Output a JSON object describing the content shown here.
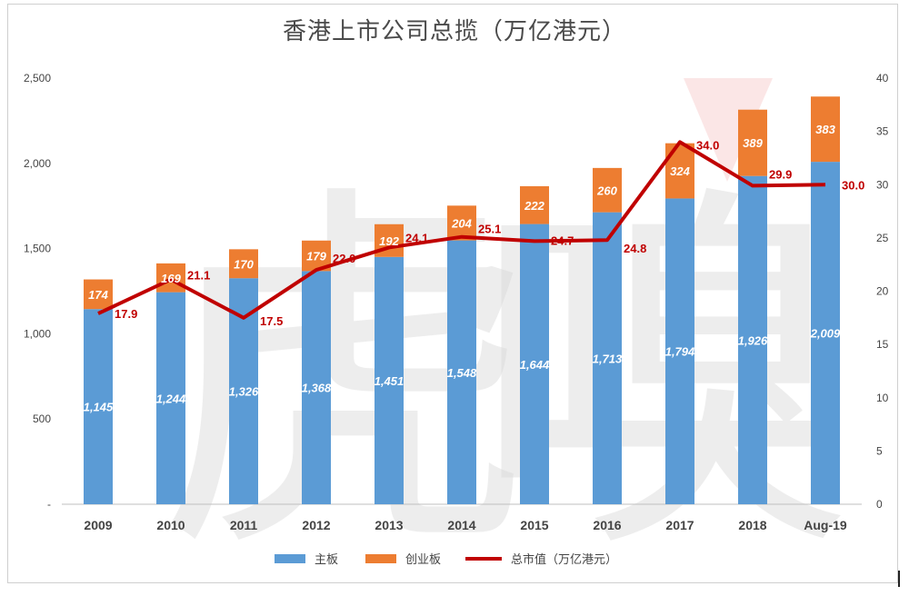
{
  "chart_data": {
    "type": "bar",
    "title": "香港上市公司总揽（万亿港元）",
    "categories": [
      "2009",
      "2010",
      "2011",
      "2012",
      "2013",
      "2014",
      "2015",
      "2016",
      "2017",
      "2018",
      "Aug-19"
    ],
    "series": [
      {
        "name": "主板",
        "type": "bar",
        "stacked": true,
        "color": "#5b9bd5",
        "values": [
          1145,
          1244,
          1326,
          1368,
          1451,
          1548,
          1644,
          1713,
          1794,
          1926,
          2009
        ],
        "labels": [
          "1,145",
          "1,244",
          "1,326",
          "1,368",
          "1,451",
          "1,548",
          "1,644",
          "1,713",
          "1,794",
          "1,926",
          "2,009"
        ]
      },
      {
        "name": "创业板",
        "type": "bar",
        "stacked": true,
        "color": "#ed7d31",
        "values": [
          174,
          169,
          170,
          179,
          192,
          204,
          222,
          260,
          324,
          389,
          383
        ],
        "labels": [
          "174",
          "169",
          "170",
          "179",
          "192",
          "204",
          "222",
          "260",
          "324",
          "389",
          "383"
        ]
      },
      {
        "name": "总市值（万亿港元）",
        "type": "line",
        "axis": "right",
        "color": "#c00000",
        "values": [
          17.9,
          21.1,
          17.5,
          22.0,
          24.1,
          25.1,
          24.7,
          24.8,
          34.0,
          29.9,
          30.0
        ],
        "labels": [
          "17.9",
          "21.1",
          "17.5",
          "22.0",
          "24.1",
          "25.1",
          "24.7",
          "24.8",
          "34.0",
          "29.9",
          "30.0"
        ]
      }
    ],
    "y_left": {
      "min": 0,
      "max": 2500,
      "ticks": [
        "-",
        "500",
        "1,000",
        "1,500",
        "2,000",
        "2,500"
      ],
      "tick_values": [
        0,
        500,
        1000,
        1500,
        2000,
        2500
      ]
    },
    "y_right": {
      "min": 0,
      "max": 40,
      "ticks": [
        "0",
        "5",
        "10",
        "15",
        "20",
        "25",
        "30",
        "35",
        "40"
      ],
      "tick_values": [
        0,
        5,
        10,
        15,
        20,
        25,
        30,
        35,
        40
      ]
    },
    "grid": false,
    "legend_position": "bottom",
    "watermark": "虎嗅"
  }
}
